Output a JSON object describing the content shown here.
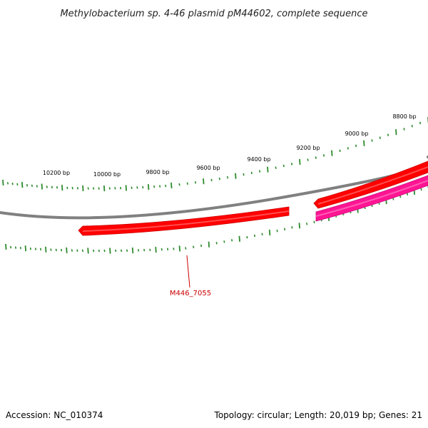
{
  "title": "Methylobacterium sp. 4-46 plasmid pM44602, complete sequence",
  "accession_text": "Accession: NC_010374",
  "summary_text": "Topology: circular; Length: 20,019 bp; Genes: 21",
  "colors": {
    "backbone": "#808080",
    "forward_gene": "#ff0000",
    "reverse_gene": "#ff1493",
    "ticks": "#2e8b2e",
    "gene_label": "#cc0000"
  },
  "scale_labels": [
    "10200 bp",
    "10000 bp",
    "9800 bp",
    "9600 bp",
    "9400 bp",
    "9200 bp",
    "9000 bp",
    "8800 bp"
  ],
  "genes": [
    {
      "name": "M446_7055",
      "strand": "forward"
    },
    {
      "name": "",
      "strand": "forward"
    },
    {
      "name": "",
      "strand": "reverse"
    }
  ]
}
